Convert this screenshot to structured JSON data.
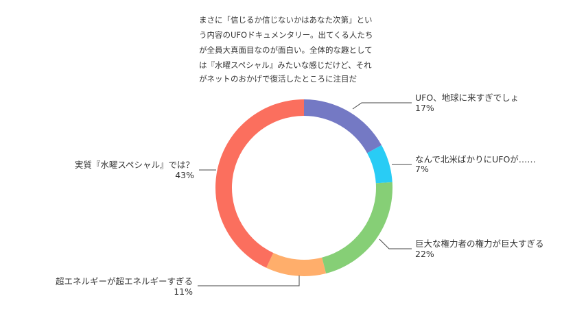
{
  "chart_data": {
    "type": "pie",
    "style": "donut",
    "description_lines": [
      "まさに「信じるか信じないかはあなた次第」とい",
      "う内容のUFOドキュメンタリー。出てくる人たち",
      "が全員大真面目なのが面白い。全体的な趣として",
      "は『水曜スペシャル』みたいな感じだけど、それ",
      "がネットのおかげで復活したところに注目だ"
    ],
    "slices": [
      {
        "label": "UFO、地球に来すぎでしょ",
        "value": 17,
        "value_label": "17%",
        "color": "#7479c4"
      },
      {
        "label": "なんで北米ばかりにUFOが……",
        "value": 7,
        "value_label": "7%",
        "color": "#29ccf5"
      },
      {
        "label": "巨大な権力者の権力が巨大すぎる",
        "value": 22,
        "value_label": "22%",
        "color": "#86cf76"
      },
      {
        "label": "超エネルギーが超エネルギーすぎる",
        "value": 11,
        "value_label": "11%",
        "color": "#ffae6b"
      },
      {
        "label": "実質『水曜スペシャル』では？",
        "value": 43,
        "value_label": "43%",
        "color": "#fb6f5e"
      }
    ]
  }
}
